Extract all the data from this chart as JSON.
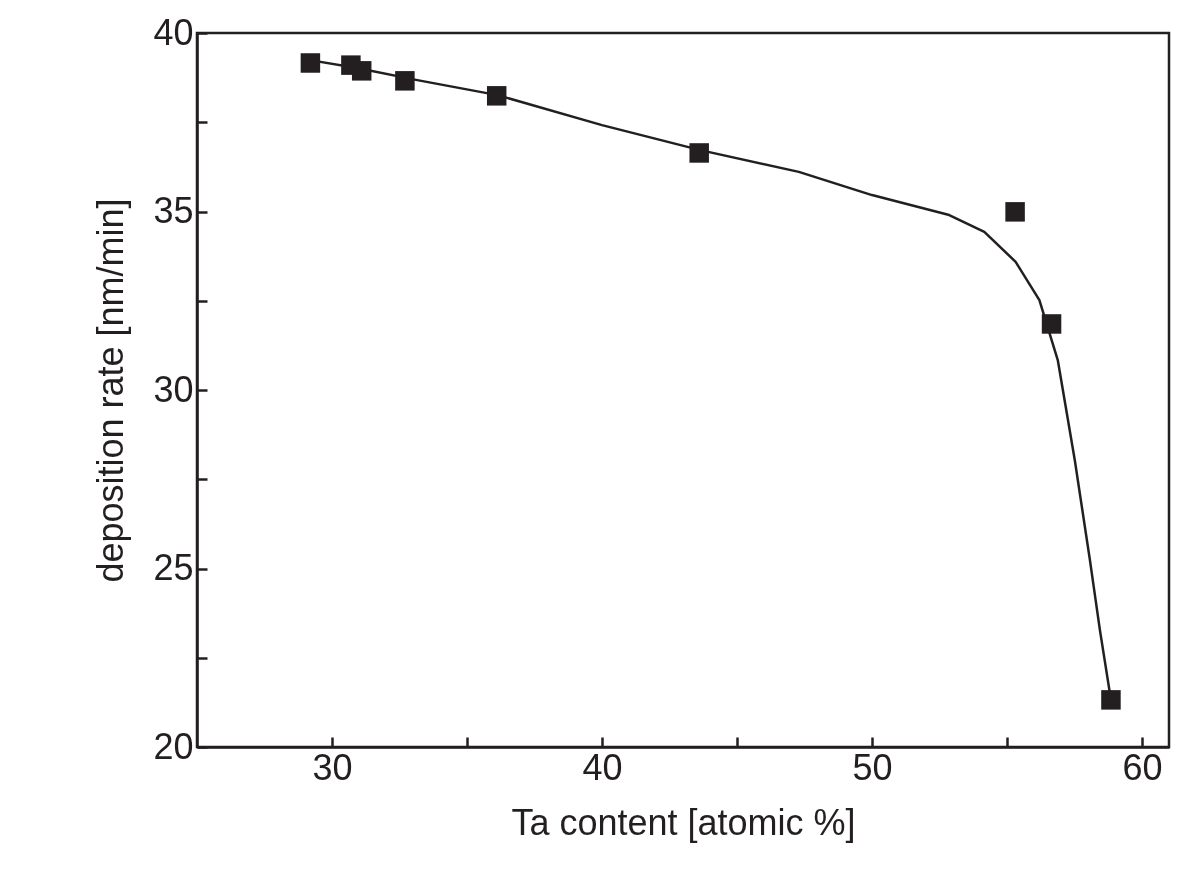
{
  "chart_data": {
    "type": "scatter",
    "xlabel": "Ta content [atomic %]",
    "ylabel": "deposition rate [nm/min]",
    "xlim": [
      25,
      61
    ],
    "xticks": [
      30,
      {
        "value": 35,
        "label": null
      },
      40,
      {
        "value": 45,
        "label": null
      },
      50,
      {
        "value": 55,
        "label": null
      },
      60
    ],
    "ylim": [
      20,
      40
    ],
    "yticks": [
      20,
      {
        "value": 22.5,
        "label": null
      },
      25,
      {
        "value": 27.5,
        "label": null
      },
      30,
      {
        "value": 32.5,
        "label": null
      },
      35,
      {
        "value": 37.5,
        "label": null
      },
      40
    ],
    "grid": false,
    "series": [
      {
        "marker": "square",
        "color": "#231f20",
        "x": [
          29.2,
          30.7,
          31.1,
          32.7,
          36.1,
          43.6,
          55.3,
          56.65,
          58.85
        ],
        "values": [
          39.16,
          39.1,
          38.94,
          38.66,
          38.24,
          36.64,
          34.99,
          31.85,
          21.32
        ]
      },
      {
        "type": "line",
        "marker": "none",
        "line_style": "solid",
        "color": "#231f20",
        "x": [
          29.18,
          30.93,
          33.16,
          36.13,
          40,
          43.64,
          47.29,
          50,
          52.86,
          54.16,
          55.32,
          56.2,
          56.88,
          57.51,
          58.07,
          58.44,
          58.85
        ],
        "values": [
          39.24,
          39.02,
          38.68,
          38.26,
          37.42,
          36.72,
          36.11,
          35.46,
          34.9,
          34.43,
          33.59,
          32.52,
          30.84,
          28.04,
          25.24,
          23.28,
          21.32
        ]
      }
    ]
  }
}
